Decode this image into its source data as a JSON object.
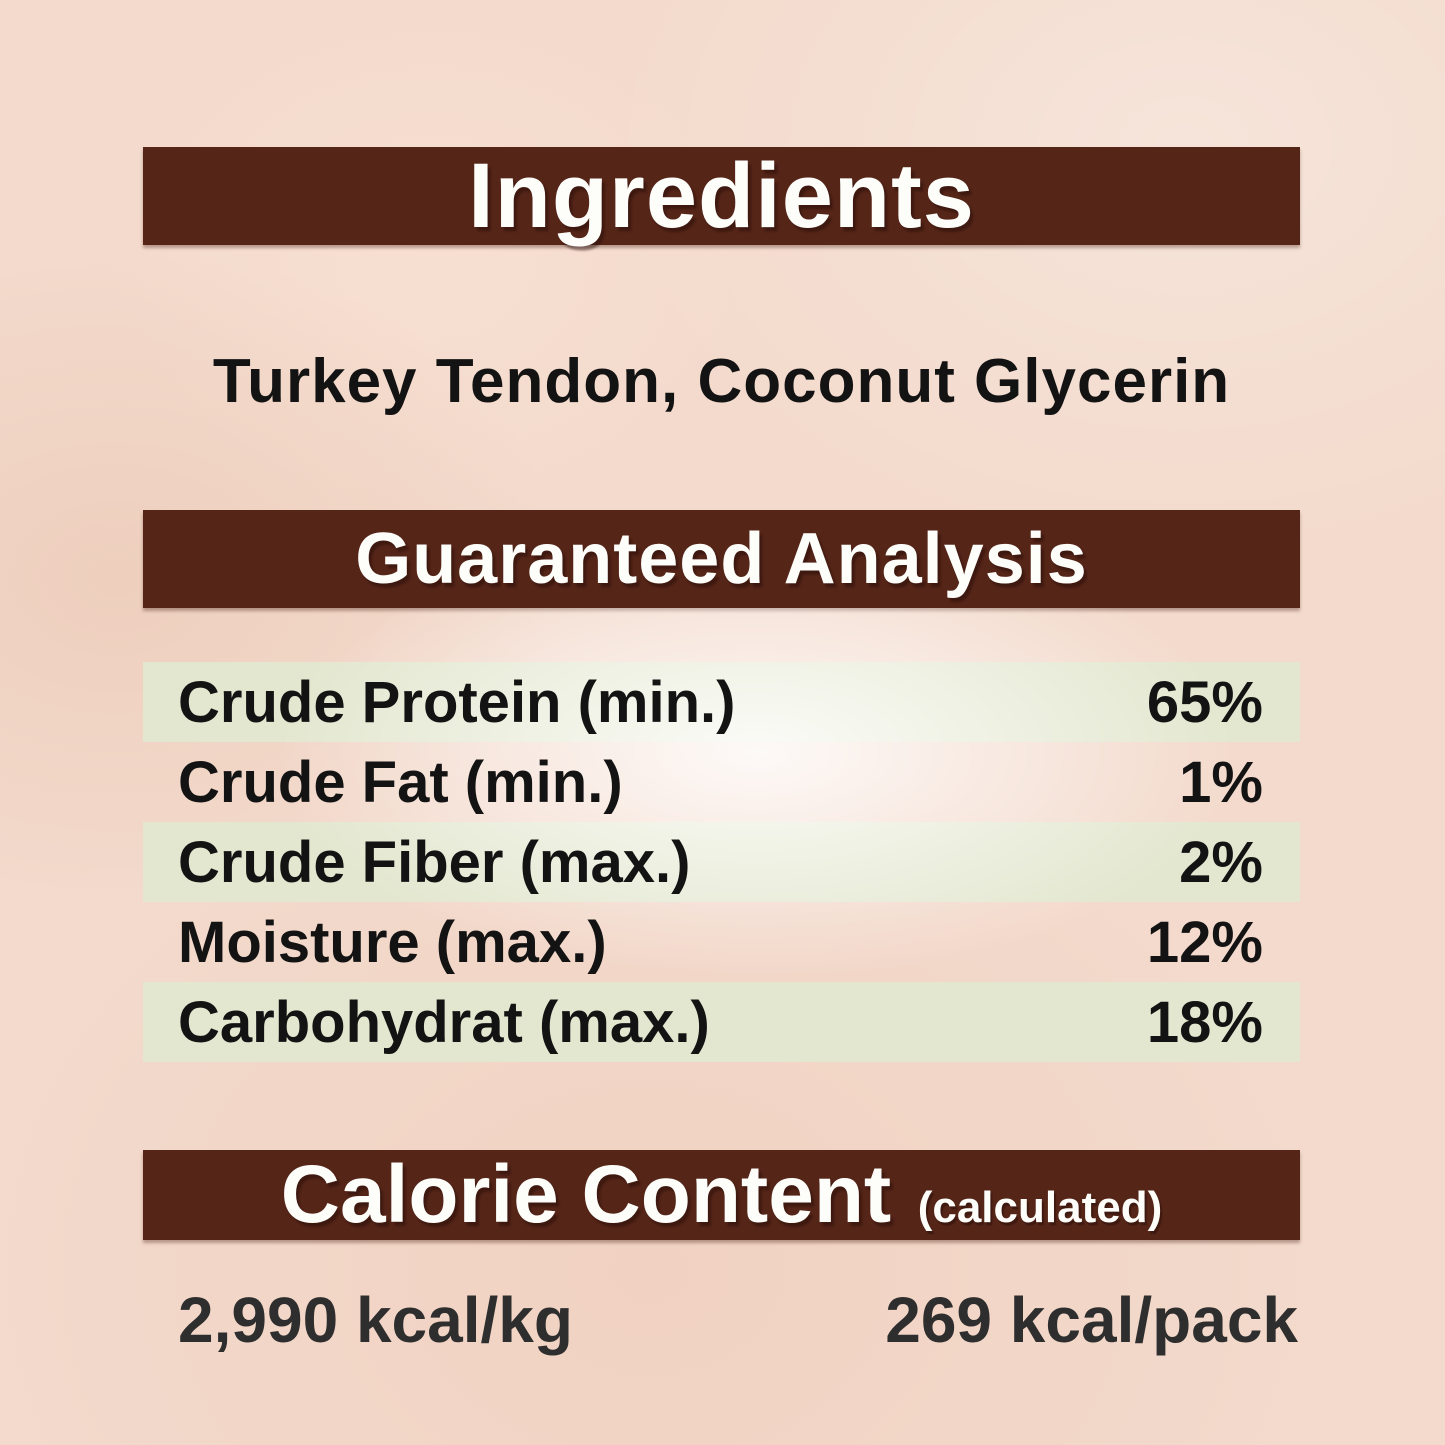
{
  "colors": {
    "page_background": "#f3dacc",
    "header_bar": "#552518",
    "header_text": "#fdfdfa",
    "stripe": "#e3e7cf",
    "body_text": "#131313",
    "calorie_value_text": "#2e2e2e"
  },
  "sections": {
    "ingredients": {
      "title": "Ingredients",
      "content": "Turkey Tendon, Coconut Glycerin"
    },
    "analysis": {
      "title": "Guaranteed Analysis",
      "rows": [
        {
          "label": "Crude Protein (min.)",
          "value": "65%"
        },
        {
          "label": "Crude Fat (min.)",
          "value": "1%"
        },
        {
          "label": "Crude Fiber (max.)",
          "value": "2%"
        },
        {
          "label": "Moisture (max.)",
          "value": "12%"
        },
        {
          "label": "Carbohydrat (max.)",
          "value": "18%"
        }
      ]
    },
    "calorie": {
      "title": "Calorie Content",
      "subtitle": "(calculated)",
      "per_kg": "2,990 kcal/kg",
      "per_pack": "269 kcal/pack"
    }
  }
}
